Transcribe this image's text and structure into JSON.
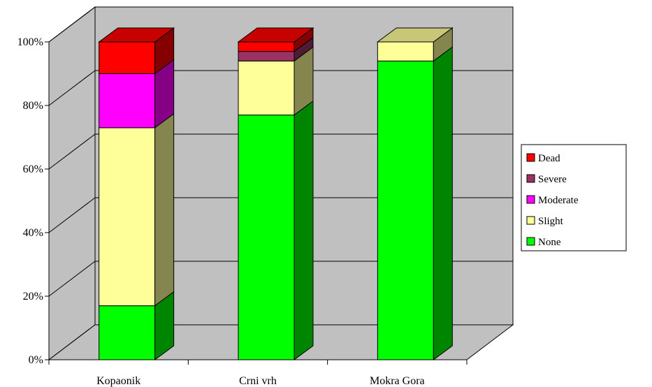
{
  "chart_data": {
    "type": "bar",
    "stacked": true,
    "percent_stacked": true,
    "three_d": true,
    "categories": [
      "Kopaonik",
      "Crni vrh",
      "Mokra Gora"
    ],
    "series": [
      {
        "name": "None",
        "values": [
          17,
          77,
          94
        ],
        "color": "#00FF00"
      },
      {
        "name": "Slight",
        "values": [
          56,
          17,
          6
        ],
        "color": "#FFFF99"
      },
      {
        "name": "Moderate",
        "values": [
          17,
          0,
          0
        ],
        "color": "#FF00FF"
      },
      {
        "name": "Severe",
        "values": [
          0,
          3,
          0
        ],
        "color": "#993366"
      },
      {
        "name": "Dead",
        "values": [
          10,
          3,
          0
        ],
        "color": "#FF0000"
      }
    ],
    "legend_order": [
      "Dead",
      "Severe",
      "Moderate",
      "Slight",
      "None"
    ],
    "yticks": [
      "0%",
      "20%",
      "40%",
      "60%",
      "80%",
      "100%"
    ],
    "ylim": [
      0,
      100
    ],
    "grid": true,
    "legend_position": "right",
    "title": "",
    "xlabel": "",
    "ylabel": "",
    "colors": {
      "walls": "#C0C0C0",
      "floor": "#C0C0C0"
    }
  }
}
